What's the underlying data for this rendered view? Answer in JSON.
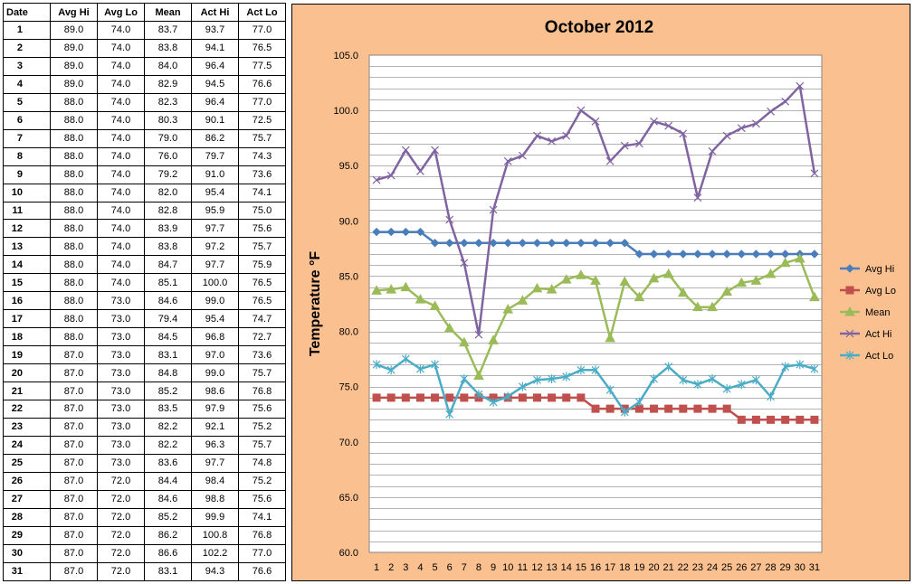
{
  "table": {
    "headers": [
      "Date",
      "Avg Hi",
      "Avg Lo",
      "Mean",
      "Act Hi",
      "Act Lo"
    ],
    "rows": [
      [
        "1",
        "89.0",
        "74.0",
        "83.7",
        "93.7",
        "77.0"
      ],
      [
        "2",
        "89.0",
        "74.0",
        "83.8",
        "94.1",
        "76.5"
      ],
      [
        "3",
        "89.0",
        "74.0",
        "84.0",
        "96.4",
        "77.5"
      ],
      [
        "4",
        "89.0",
        "74.0",
        "82.9",
        "94.5",
        "76.6"
      ],
      [
        "5",
        "88.0",
        "74.0",
        "82.3",
        "96.4",
        "77.0"
      ],
      [
        "6",
        "88.0",
        "74.0",
        "80.3",
        "90.1",
        "72.5"
      ],
      [
        "7",
        "88.0",
        "74.0",
        "79.0",
        "86.2",
        "75.7"
      ],
      [
        "8",
        "88.0",
        "74.0",
        "76.0",
        "79.7",
        "74.3"
      ],
      [
        "9",
        "88.0",
        "74.0",
        "79.2",
        "91.0",
        "73.6"
      ],
      [
        "10",
        "88.0",
        "74.0",
        "82.0",
        "95.4",
        "74.1"
      ],
      [
        "11",
        "88.0",
        "74.0",
        "82.8",
        "95.9",
        "75.0"
      ],
      [
        "12",
        "88.0",
        "74.0",
        "83.9",
        "97.7",
        "75.6"
      ],
      [
        "13",
        "88.0",
        "74.0",
        "83.8",
        "97.2",
        "75.7"
      ],
      [
        "14",
        "88.0",
        "74.0",
        "84.7",
        "97.7",
        "75.9"
      ],
      [
        "15",
        "88.0",
        "74.0",
        "85.1",
        "100.0",
        "76.5"
      ],
      [
        "16",
        "88.0",
        "73.0",
        "84.6",
        "99.0",
        "76.5"
      ],
      [
        "17",
        "88.0",
        "73.0",
        "79.4",
        "95.4",
        "74.7"
      ],
      [
        "18",
        "88.0",
        "73.0",
        "84.5",
        "96.8",
        "72.7"
      ],
      [
        "19",
        "87.0",
        "73.0",
        "83.1",
        "97.0",
        "73.6"
      ],
      [
        "20",
        "87.0",
        "73.0",
        "84.8",
        "99.0",
        "75.7"
      ],
      [
        "21",
        "87.0",
        "73.0",
        "85.2",
        "98.6",
        "76.8"
      ],
      [
        "22",
        "87.0",
        "73.0",
        "83.5",
        "97.9",
        "75.6"
      ],
      [
        "23",
        "87.0",
        "73.0",
        "82.2",
        "92.1",
        "75.2"
      ],
      [
        "24",
        "87.0",
        "73.0",
        "82.2",
        "96.3",
        "75.7"
      ],
      [
        "25",
        "87.0",
        "73.0",
        "83.6",
        "97.7",
        "74.8"
      ],
      [
        "26",
        "87.0",
        "72.0",
        "84.4",
        "98.4",
        "75.2"
      ],
      [
        "27",
        "87.0",
        "72.0",
        "84.6",
        "98.8",
        "75.6"
      ],
      [
        "28",
        "87.0",
        "72.0",
        "85.2",
        "99.9",
        "74.1"
      ],
      [
        "29",
        "87.0",
        "72.0",
        "86.2",
        "100.8",
        "76.8"
      ],
      [
        "30",
        "87.0",
        "72.0",
        "86.6",
        "102.2",
        "77.0"
      ],
      [
        "31",
        "87.0",
        "72.0",
        "83.1",
        "94.3",
        "76.6"
      ]
    ]
  },
  "chart_data": {
    "type": "line",
    "title": "October 2012",
    "xlabel": "",
    "ylabel": "Temperature °F",
    "ylim": [
      60,
      105
    ],
    "ytick_step": 5,
    "ytick_labels": [
      "60.0",
      "65.0",
      "70.0",
      "75.0",
      "80.0",
      "85.0",
      "90.0",
      "95.0",
      "100.0",
      "105.0"
    ],
    "minor_grid_step": 1,
    "grid": true,
    "legend_position": "right",
    "background": "#fac090",
    "plot_background": "#ffffff",
    "x": [
      1,
      2,
      3,
      4,
      5,
      6,
      7,
      8,
      9,
      10,
      11,
      12,
      13,
      14,
      15,
      16,
      17,
      18,
      19,
      20,
      21,
      22,
      23,
      24,
      25,
      26,
      27,
      28,
      29,
      30,
      31
    ],
    "series": [
      {
        "name": "Avg Hi",
        "color": "#4a7ebb",
        "marker": "diamond",
        "values": [
          89,
          89,
          89,
          89,
          88,
          88,
          88,
          88,
          88,
          88,
          88,
          88,
          88,
          88,
          88,
          88,
          88,
          88,
          87,
          87,
          87,
          87,
          87,
          87,
          87,
          87,
          87,
          87,
          87,
          87,
          87
        ]
      },
      {
        "name": "Avg Lo",
        "color": "#c0504d",
        "marker": "square",
        "values": [
          74,
          74,
          74,
          74,
          74,
          74,
          74,
          74,
          74,
          74,
          74,
          74,
          74,
          74,
          74,
          73,
          73,
          73,
          73,
          73,
          73,
          73,
          73,
          73,
          73,
          72,
          72,
          72,
          72,
          72,
          72
        ]
      },
      {
        "name": "Mean",
        "color": "#9bbb59",
        "marker": "triangle",
        "values": [
          83.7,
          83.8,
          84.0,
          82.9,
          82.3,
          80.3,
          79.0,
          76.0,
          79.2,
          82.0,
          82.8,
          83.9,
          83.8,
          84.7,
          85.1,
          84.6,
          79.4,
          84.5,
          83.1,
          84.8,
          85.2,
          83.5,
          82.2,
          82.2,
          83.6,
          84.4,
          84.6,
          85.2,
          86.2,
          86.6,
          83.1
        ]
      },
      {
        "name": "Act Hi",
        "color": "#8064a2",
        "marker": "x",
        "values": [
          93.7,
          94.1,
          96.4,
          94.5,
          96.4,
          90.1,
          86.2,
          79.7,
          91.0,
          95.4,
          95.9,
          97.7,
          97.2,
          97.7,
          100.0,
          99.0,
          95.4,
          96.8,
          97.0,
          99.0,
          98.6,
          97.9,
          92.1,
          96.3,
          97.7,
          98.4,
          98.8,
          99.9,
          100.8,
          102.2,
          94.3
        ]
      },
      {
        "name": "Act Lo",
        "color": "#4bacc6",
        "marker": "star",
        "values": [
          77.0,
          76.5,
          77.5,
          76.6,
          77.0,
          72.5,
          75.7,
          74.3,
          73.6,
          74.1,
          75.0,
          75.6,
          75.7,
          75.9,
          76.5,
          76.5,
          74.7,
          72.7,
          73.6,
          75.7,
          76.8,
          75.6,
          75.2,
          75.7,
          74.8,
          75.2,
          75.6,
          74.1,
          76.8,
          77.0,
          76.6
        ]
      }
    ]
  }
}
